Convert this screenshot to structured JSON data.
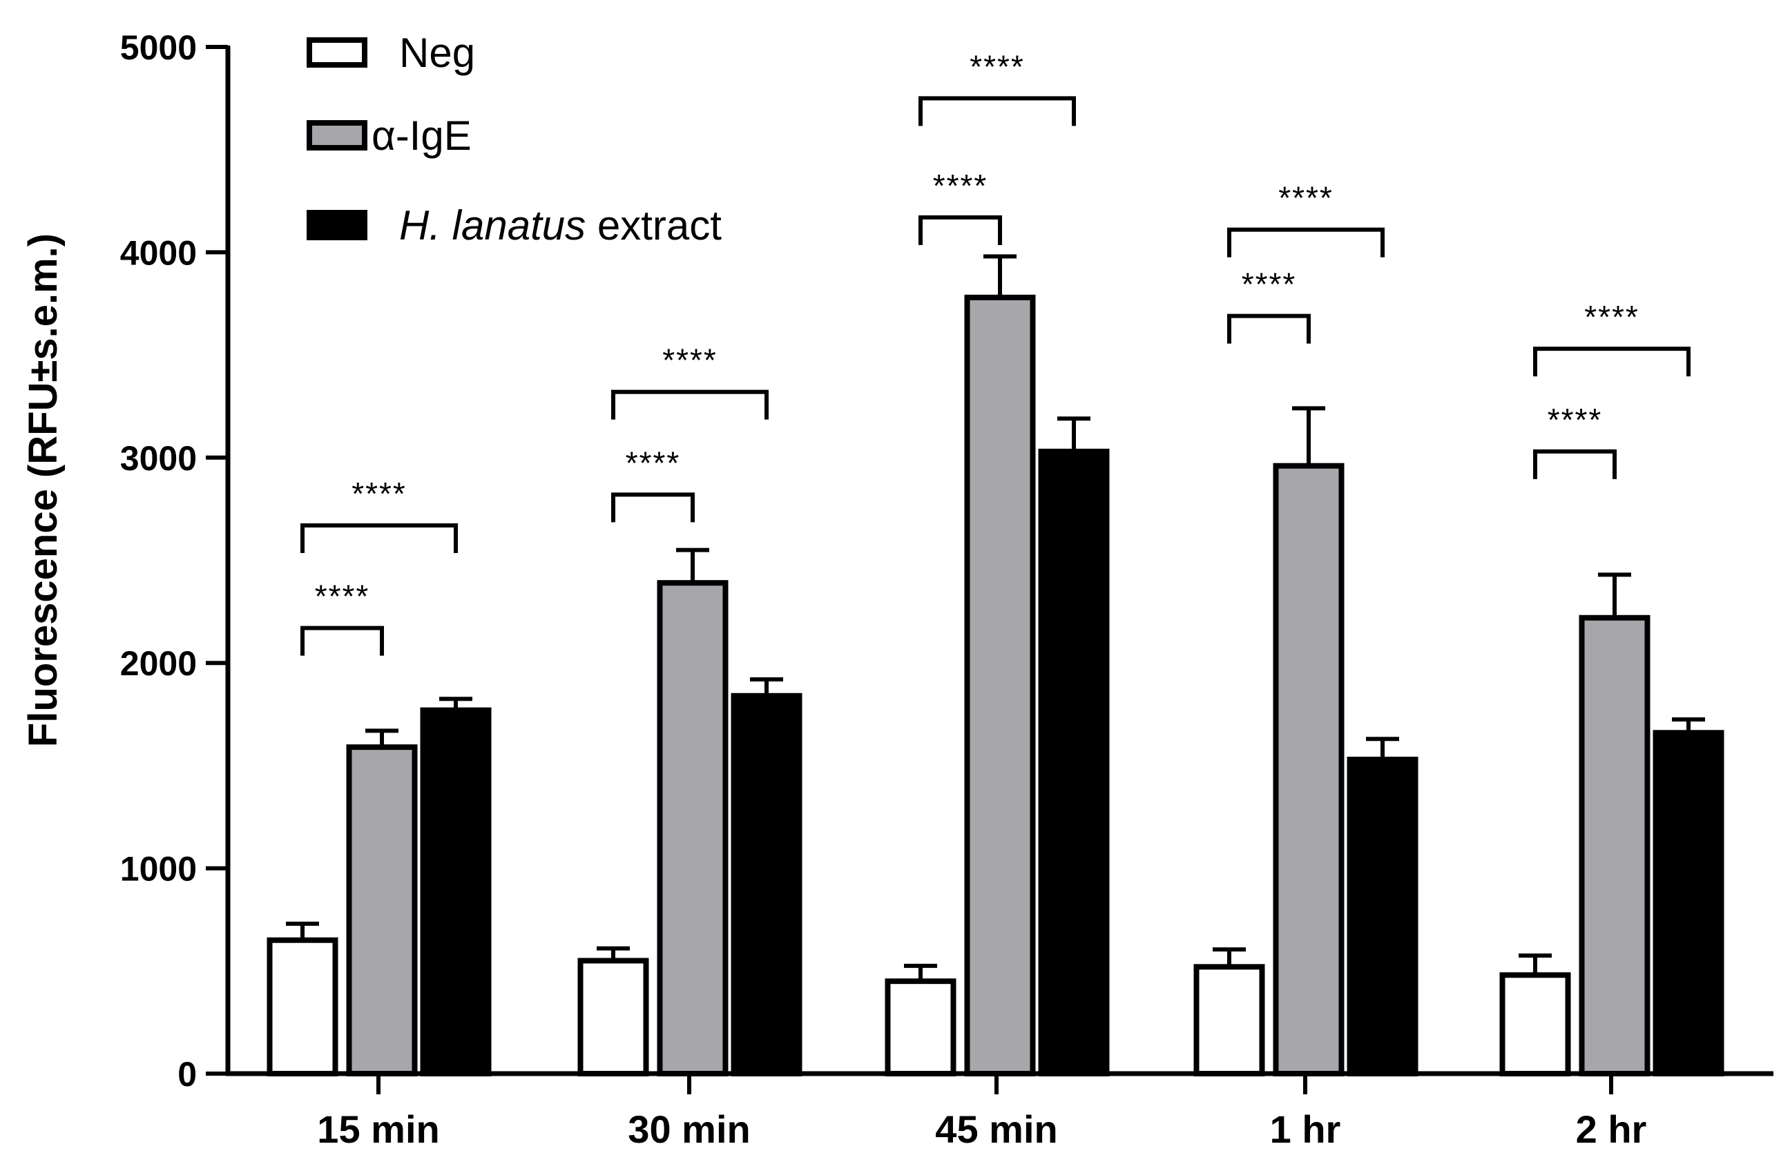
{
  "chart_data": {
    "type": "bar",
    "title": "",
    "xlabel": "",
    "ylabel": "Fluorescence (RFU±s.e.m.)",
    "ylim": [
      0,
      5000
    ],
    "yticks": [
      "0",
      "1000",
      "2000",
      "3000",
      "4000",
      "5000"
    ],
    "categories": [
      "15 min",
      "30 min",
      "45 min",
      "1 hr",
      "2 hr"
    ],
    "series": [
      {
        "name": "Neg",
        "color": "#ffffff",
        "values": [
          650,
          550,
          450,
          520,
          480
        ],
        "errors": [
          80,
          60,
          75,
          85,
          95
        ]
      },
      {
        "name": "α-IgE",
        "color": "#a7a6ab",
        "values": [
          1590,
          2390,
          3780,
          2960,
          2220
        ],
        "errors": [
          80,
          160,
          200,
          280,
          210
        ]
      },
      {
        "name": "H. lanatus extract",
        "name_italic": "H. lanatus",
        "name_rest": " extract",
        "color": "#000000",
        "values": [
          1770,
          1840,
          3030,
          1530,
          1660
        ],
        "errors": [
          55,
          80,
          160,
          100,
          65
        ]
      }
    ],
    "legend_position": "top-left",
    "significance": [
      {
        "category": 0,
        "from_series": 0,
        "to_series": 1,
        "level": 2170,
        "label": "****"
      },
      {
        "category": 0,
        "from_series": 0,
        "to_series": 2,
        "level": 2670,
        "label": "****"
      },
      {
        "category": 1,
        "from_series": 0,
        "to_series": 1,
        "level": 2820,
        "label": "****"
      },
      {
        "category": 1,
        "from_series": 0,
        "to_series": 2,
        "level": 3320,
        "label": "****"
      },
      {
        "category": 2,
        "from_series": 0,
        "to_series": 1,
        "level": 4170,
        "label": "****"
      },
      {
        "category": 2,
        "from_series": 0,
        "to_series": 2,
        "level": 4750,
        "label": "****"
      },
      {
        "category": 3,
        "from_series": 0,
        "to_series": 1,
        "level": 3690,
        "label": "****"
      },
      {
        "category": 3,
        "from_series": 0,
        "to_series": 2,
        "level": 4110,
        "label": "****"
      },
      {
        "category": 4,
        "from_series": 0,
        "to_series": 1,
        "level": 3030,
        "label": "****"
      },
      {
        "category": 4,
        "from_series": 0,
        "to_series": 2,
        "level": 3530,
        "label": "****"
      }
    ]
  }
}
